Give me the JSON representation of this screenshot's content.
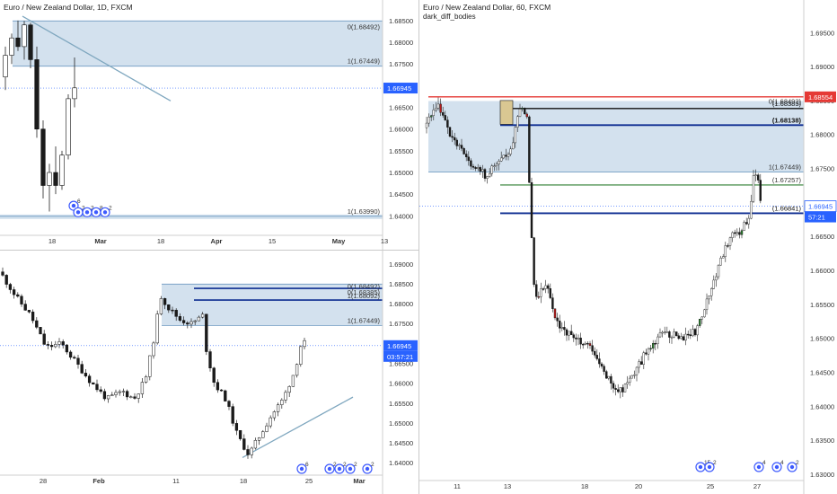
{
  "panels": [
    {
      "id": "tl",
      "title": "Euro / New Zealand Dollar, 1D, FXCM",
      "subtitle": "",
      "price_axis": {
        "ticks": [
          "1.68500",
          "1.68000",
          "1.67500",
          "1.67000",
          "1.66500",
          "1.66000",
          "1.65500",
          "1.65000",
          "1.64500",
          "1.64000"
        ]
      },
      "time_axis": {
        "ticks": [
          "18",
          "Mar",
          "18",
          "Apr",
          "15",
          "May",
          "13"
        ]
      },
      "price_labels": [
        {
          "text": "1.66945",
          "bg": "#2962ff",
          "fg": "#ffffff"
        }
      ],
      "fib_labels": [
        "0(1.68492)",
        "1(1.67449)",
        "1(1.63990)"
      ],
      "event_labels": [
        "6",
        "2",
        "2",
        "8",
        "2"
      ],
      "chart_data": {
        "type": "candlestick",
        "title": "Euro / New Zealand Dollar, 1D, FXCM",
        "ylim": [
          1.638,
          1.6885
        ],
        "last_price": 1.66945,
        "candles": [
          {
            "o": 1.672,
            "h": 1.679,
            "l": 1.669,
            "c": 1.677
          },
          {
            "o": 1.677,
            "h": 1.682,
            "l": 1.675,
            "c": 1.681
          },
          {
            "o": 1.681,
            "h": 1.685,
            "l": 1.678,
            "c": 1.679
          },
          {
            "o": 1.679,
            "h": 1.6849,
            "l": 1.676,
            "c": 1.684
          },
          {
            "o": 1.684,
            "h": 1.6845,
            "l": 1.674,
            "c": 1.676
          },
          {
            "o": 1.676,
            "h": 1.679,
            "l": 1.658,
            "c": 1.66
          },
          {
            "o": 1.66,
            "h": 1.662,
            "l": 1.644,
            "c": 1.647
          },
          {
            "o": 1.647,
            "h": 1.652,
            "l": 1.641,
            "c": 1.65
          },
          {
            "o": 1.65,
            "h": 1.656,
            "l": 1.645,
            "c": 1.647
          },
          {
            "o": 1.647,
            "h": 1.655,
            "l": 1.646,
            "c": 1.654
          },
          {
            "o": 1.654,
            "h": 1.668,
            "l": 1.653,
            "c": 1.667
          },
          {
            "o": 1.667,
            "h": 1.6765,
            "l": 1.665,
            "c": 1.6695
          }
        ]
      }
    },
    {
      "id": "bl",
      "title": "",
      "subtitle": "",
      "price_axis": {
        "ticks": [
          "1.69000",
          "1.68500",
          "1.68000",
          "1.67500",
          "1.67000",
          "1.66500",
          "1.66000",
          "1.65500",
          "1.65000",
          "1.64500",
          "1.64000"
        ]
      },
      "time_axis": {
        "ticks": [
          "28",
          "Feb",
          "11",
          "18",
          "25",
          "Mar"
        ]
      },
      "price_labels": [
        {
          "text": "1.66945",
          "bg": "#2962ff",
          "fg": "#ffffff"
        },
        {
          "text": "03:57:21",
          "bg": "#2962ff",
          "fg": "#ffffff"
        }
      ],
      "fib_labels": [
        "0(1.68492)",
        "0(1.68385)",
        "1(1.68092)",
        "1(1.67449)"
      ],
      "event_labels": [
        "6",
        "2",
        "2",
        "2",
        "2"
      ],
      "chart_data": {
        "type": "candlestick",
        "ylim": [
          1.638,
          1.692
        ],
        "last_price": 1.66945,
        "path": [
          {
            "x": 0.0,
            "y": 1.688
          },
          {
            "x": 0.04,
            "y": 1.682
          },
          {
            "x": 0.08,
            "y": 1.677
          },
          {
            "x": 0.12,
            "y": 1.669
          },
          {
            "x": 0.16,
            "y": 1.67
          },
          {
            "x": 0.2,
            "y": 1.665
          },
          {
            "x": 0.24,
            "y": 1.66
          },
          {
            "x": 0.28,
            "y": 1.656
          },
          {
            "x": 0.32,
            "y": 1.658
          },
          {
            "x": 0.35,
            "y": 1.656
          },
          {
            "x": 0.38,
            "y": 1.661
          },
          {
            "x": 0.4,
            "y": 1.67
          },
          {
            "x": 0.42,
            "y": 1.682
          },
          {
            "x": 0.44,
            "y": 1.679
          },
          {
            "x": 0.47,
            "y": 1.676
          },
          {
            "x": 0.5,
            "y": 1.675
          },
          {
            "x": 0.53,
            "y": 1.677
          },
          {
            "x": 0.54,
            "y": 1.668
          },
          {
            "x": 0.56,
            "y": 1.66
          },
          {
            "x": 0.59,
            "y": 1.656
          },
          {
            "x": 0.62,
            "y": 1.647
          },
          {
            "x": 0.65,
            "y": 1.642
          },
          {
            "x": 0.68,
            "y": 1.647
          },
          {
            "x": 0.71,
            "y": 1.652
          },
          {
            "x": 0.74,
            "y": 1.656
          },
          {
            "x": 0.77,
            "y": 1.663
          },
          {
            "x": 0.79,
            "y": 1.671
          },
          {
            "x": 0.8,
            "y": 1.6695
          }
        ]
      }
    },
    {
      "id": "right",
      "title": "Euro / New Zealand Dollar, 60, FXCM",
      "subtitle": "dark_diff_bodies",
      "price_axis": {
        "ticks": [
          "1.69500",
          "1.69000",
          "1.68500",
          "1.68000",
          "1.67500",
          "1.67000",
          "1.66500",
          "1.66000",
          "1.65500",
          "1.65000",
          "1.64500",
          "1.64000",
          "1.63500",
          "1.63000"
        ]
      },
      "time_axis": {
        "ticks": [
          "11",
          "13",
          "18",
          "20",
          "25",
          "27"
        ]
      },
      "price_labels": [
        {
          "text": "1.68554",
          "bg": "#e53935",
          "fg": "#ffffff"
        },
        {
          "text": "1.66945",
          "bg": "#ffffff",
          "fg": "#2962ff"
        },
        {
          "text": "57:21",
          "bg": "#2962ff",
          "fg": "#ffffff"
        }
      ],
      "fib_labels": [
        "0(1.68492)",
        "(1.68383)",
        "(1.68138)",
        "1(1.67449)",
        "(1.67257)",
        "(1.66841)"
      ],
      "event_labels": [
        "15",
        "2",
        "4",
        "4",
        "2"
      ],
      "chart_data": {
        "type": "candlestick",
        "title": "Euro / New Zealand Dollar, 60, FXCM",
        "ylim": [
          1.63,
          1.699
        ],
        "last_price": 1.66945,
        "levels": [
          1.68554,
          1.68492,
          1.68383,
          1.68138,
          1.67449,
          1.67257,
          1.66841
        ],
        "path": [
          {
            "x": 0.0,
            "y": 1.681
          },
          {
            "x": 0.05,
            "y": 1.684
          },
          {
            "x": 0.09,
            "y": 1.679
          },
          {
            "x": 0.13,
            "y": 1.676
          },
          {
            "x": 0.17,
            "y": 1.674
          },
          {
            "x": 0.21,
            "y": 1.676
          },
          {
            "x": 0.24,
            "y": 1.678
          },
          {
            "x": 0.26,
            "y": 1.684
          },
          {
            "x": 0.28,
            "y": 1.683
          },
          {
            "x": 0.29,
            "y": 1.667
          },
          {
            "x": 0.3,
            "y": 1.656
          },
          {
            "x": 0.33,
            "y": 1.658
          },
          {
            "x": 0.36,
            "y": 1.652
          },
          {
            "x": 0.4,
            "y": 1.65
          },
          {
            "x": 0.44,
            "y": 1.649
          },
          {
            "x": 0.48,
            "y": 1.645
          },
          {
            "x": 0.52,
            "y": 1.642
          },
          {
            "x": 0.56,
            "y": 1.645
          },
          {
            "x": 0.6,
            "y": 1.649
          },
          {
            "x": 0.64,
            "y": 1.651
          },
          {
            "x": 0.68,
            "y": 1.65
          },
          {
            "x": 0.72,
            "y": 1.651
          },
          {
            "x": 0.75,
            "y": 1.656
          },
          {
            "x": 0.78,
            "y": 1.661
          },
          {
            "x": 0.81,
            "y": 1.665
          },
          {
            "x": 0.84,
            "y": 1.666
          },
          {
            "x": 0.86,
            "y": 1.668
          },
          {
            "x": 0.87,
            "y": 1.675
          },
          {
            "x": 0.88,
            "y": 1.6735
          },
          {
            "x": 0.89,
            "y": 1.6695
          }
        ]
      }
    }
  ],
  "colors": {
    "zone_fill": "#d3e1ee",
    "zone_line": "#6f9bc2",
    "up": "#ffffff",
    "down": "#1b1b1b",
    "wick": "#222222",
    "trend": "#7fa7bf",
    "level_red": "#e53935",
    "level_navy": "#0d2c91",
    "level_black": "#111111",
    "level_green": "#2e7d32",
    "price_blue": "#2962ff"
  }
}
